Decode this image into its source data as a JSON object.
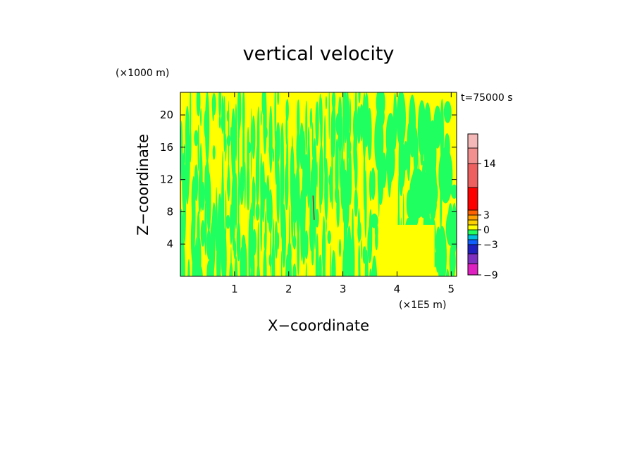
{
  "chart_data": {
    "type": "heatmap",
    "title": "vertical velocity",
    "xlabel": "X−coordinate",
    "ylabel": "Z−coordinate",
    "x_unit": "(×1E5 m)",
    "y_unit": "(×1000 m)",
    "time_label": "t=75000 s",
    "xlim": [
      0,
      5.1
    ],
    "ylim": [
      0,
      22.8
    ],
    "x_ticks": [
      1,
      2,
      3,
      4,
      5
    ],
    "y_ticks": [
      4,
      8,
      12,
      16,
      20
    ],
    "colorbar": {
      "tick_labels": [
        {
          "value": 14,
          "label": "14"
        },
        {
          "value": 3,
          "label": "3"
        },
        {
          "value": 0,
          "label": "0"
        },
        {
          "value": -3,
          "label": "−3"
        },
        {
          "value": -9,
          "label": "−9"
        }
      ],
      "levels": [
        -9,
        -6,
        -4,
        -3,
        -2,
        -1,
        0,
        1,
        2,
        3,
        6,
        10,
        14,
        18,
        22
      ],
      "colors": [
        "#e020c0",
        "#8030c0",
        "#2020c0",
        "#1060ff",
        "#00c0e0",
        "#20ff60",
        "#ffff00",
        "#ffd000",
        "#ffa000",
        "#ff6000",
        "#ff0000",
        "#ee6060",
        "#f29090",
        "#f4b8b8"
      ]
    },
    "dominant_values": {
      "positive_color": "#ffff00",
      "negative_color": "#20ff60",
      "feature_color": "#c02020"
    }
  }
}
